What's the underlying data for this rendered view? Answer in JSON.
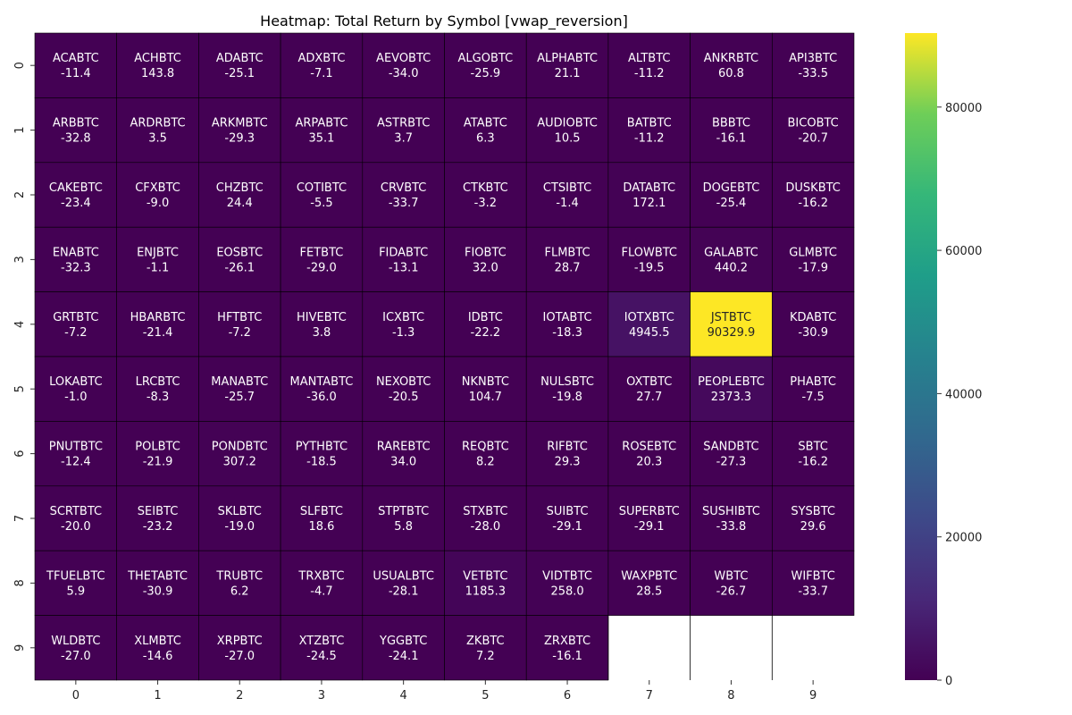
{
  "chart_data": {
    "type": "heatmap",
    "title": "Heatmap: Total Return by Symbol [vwap_reversion]",
    "xlabel": "",
    "ylabel": "",
    "x_ticks": [
      "0",
      "1",
      "2",
      "3",
      "4",
      "5",
      "6",
      "7",
      "8",
      "9"
    ],
    "y_ticks": [
      "0",
      "1",
      "2",
      "3",
      "4",
      "5",
      "6",
      "7",
      "8",
      "9"
    ],
    "colormap": "viridis",
    "colorbar": {
      "min": 0,
      "max": 90329.9,
      "ticks": [
        0,
        20000,
        40000,
        60000,
        80000
      ]
    },
    "cells": [
      [
        {
          "symbol": "ACABTC",
          "value": -11.4,
          "label": "-11.4"
        },
        {
          "symbol": "ACHBTC",
          "value": 143.8,
          "label": "143.8"
        },
        {
          "symbol": "ADABTC",
          "value": -25.1,
          "label": "-25.1"
        },
        {
          "symbol": "ADXBTC",
          "value": -7.1,
          "label": "-7.1"
        },
        {
          "symbol": "AEVOBTC",
          "value": -34.0,
          "label": "-34.0"
        },
        {
          "symbol": "ALGOBTC",
          "value": -25.9,
          "label": "-25.9"
        },
        {
          "symbol": "ALPHABTC",
          "value": 21.1,
          "label": "21.1"
        },
        {
          "symbol": "ALTBTC",
          "value": -11.2,
          "label": "-11.2"
        },
        {
          "symbol": "ANKRBTC",
          "value": 60.8,
          "label": "60.8"
        },
        {
          "symbol": "API3BTC",
          "value": -33.5,
          "label": "-33.5"
        }
      ],
      [
        {
          "symbol": "ARBBTC",
          "value": -32.8,
          "label": "-32.8"
        },
        {
          "symbol": "ARDRBTC",
          "value": 3.5,
          "label": "3.5"
        },
        {
          "symbol": "ARKMBTC",
          "value": -29.3,
          "label": "-29.3"
        },
        {
          "symbol": "ARPABTC",
          "value": 35.1,
          "label": "35.1"
        },
        {
          "symbol": "ASTRBTC",
          "value": 3.7,
          "label": "3.7"
        },
        {
          "symbol": "ATABTC",
          "value": 6.3,
          "label": "6.3"
        },
        {
          "symbol": "AUDIOBTC",
          "value": 10.5,
          "label": "10.5"
        },
        {
          "symbol": "BATBTC",
          "value": -11.2,
          "label": "-11.2"
        },
        {
          "symbol": "BBBTC",
          "value": -16.1,
          "label": "-16.1"
        },
        {
          "symbol": "BICOBTC",
          "value": -20.7,
          "label": "-20.7"
        }
      ],
      [
        {
          "symbol": "CAKEBTC",
          "value": -23.4,
          "label": "-23.4"
        },
        {
          "symbol": "CFXBTC",
          "value": -9.0,
          "label": "-9.0"
        },
        {
          "symbol": "CHZBTC",
          "value": 24.4,
          "label": "24.4"
        },
        {
          "symbol": "COTIBTC",
          "value": -5.5,
          "label": "-5.5"
        },
        {
          "symbol": "CRVBTC",
          "value": -33.7,
          "label": "-33.7"
        },
        {
          "symbol": "CTKBTC",
          "value": -3.2,
          "label": "-3.2"
        },
        {
          "symbol": "CTSIBTC",
          "value": -1.4,
          "label": "-1.4"
        },
        {
          "symbol": "DATABTC",
          "value": 172.1,
          "label": "172.1"
        },
        {
          "symbol": "DOGEBTC",
          "value": -25.4,
          "label": "-25.4"
        },
        {
          "symbol": "DUSKBTC",
          "value": -16.2,
          "label": "-16.2"
        }
      ],
      [
        {
          "symbol": "ENABTC",
          "value": -32.3,
          "label": "-32.3"
        },
        {
          "symbol": "ENJBTC",
          "value": -1.1,
          "label": "-1.1"
        },
        {
          "symbol": "EOSBTC",
          "value": -26.1,
          "label": "-26.1"
        },
        {
          "symbol": "FETBTC",
          "value": -29.0,
          "label": "-29.0"
        },
        {
          "symbol": "FIDABTC",
          "value": -13.1,
          "label": "-13.1"
        },
        {
          "symbol": "FIOBTC",
          "value": 32.0,
          "label": "32.0"
        },
        {
          "symbol": "FLMBTC",
          "value": 28.7,
          "label": "28.7"
        },
        {
          "symbol": "FLOWBTC",
          "value": -19.5,
          "label": "-19.5"
        },
        {
          "symbol": "GALABTC",
          "value": 440.2,
          "label": "440.2"
        },
        {
          "symbol": "GLMBTC",
          "value": -17.9,
          "label": "-17.9"
        }
      ],
      [
        {
          "symbol": "GRTBTC",
          "value": -7.2,
          "label": "-7.2"
        },
        {
          "symbol": "HBARBTC",
          "value": -21.4,
          "label": "-21.4"
        },
        {
          "symbol": "HFTBTC",
          "value": -7.2,
          "label": "-7.2"
        },
        {
          "symbol": "HIVEBTC",
          "value": 3.8,
          "label": "3.8"
        },
        {
          "symbol": "ICXBTC",
          "value": -1.3,
          "label": "-1.3"
        },
        {
          "symbol": "IDBTC",
          "value": -22.2,
          "label": "-22.2"
        },
        {
          "symbol": "IOTABTC",
          "value": -18.3,
          "label": "-18.3"
        },
        {
          "symbol": "IOTXBTC",
          "value": 4945.5,
          "label": "4945.5"
        },
        {
          "symbol": "JSTBTC",
          "value": 90329.9,
          "label": "90329.9"
        },
        {
          "symbol": "KDABTC",
          "value": -30.9,
          "label": "-30.9"
        }
      ],
      [
        {
          "symbol": "LOKABTC",
          "value": -1.0,
          "label": "-1.0"
        },
        {
          "symbol": "LRCBTC",
          "value": -8.3,
          "label": "-8.3"
        },
        {
          "symbol": "MANABTC",
          "value": -25.7,
          "label": "-25.7"
        },
        {
          "symbol": "MANTABTC",
          "value": -36.0,
          "label": "-36.0"
        },
        {
          "symbol": "NEXOBTC",
          "value": -20.5,
          "label": "-20.5"
        },
        {
          "symbol": "NKNBTC",
          "value": 104.7,
          "label": "104.7"
        },
        {
          "symbol": "NULSBTC",
          "value": -19.8,
          "label": "-19.8"
        },
        {
          "symbol": "OXTBTC",
          "value": 27.7,
          "label": "27.7"
        },
        {
          "symbol": "PEOPLEBTC",
          "value": 2373.3,
          "label": "2373.3"
        },
        {
          "symbol": "PHABTC",
          "value": -7.5,
          "label": "-7.5"
        }
      ],
      [
        {
          "symbol": "PNUTBTC",
          "value": -12.4,
          "label": "-12.4"
        },
        {
          "symbol": "POLBTC",
          "value": -21.9,
          "label": "-21.9"
        },
        {
          "symbol": "PONDBTC",
          "value": 307.2,
          "label": "307.2"
        },
        {
          "symbol": "PYTHBTC",
          "value": -18.5,
          "label": "-18.5"
        },
        {
          "symbol": "RAREBTC",
          "value": 34.0,
          "label": "34.0"
        },
        {
          "symbol": "REQBTC",
          "value": 8.2,
          "label": "8.2"
        },
        {
          "symbol": "RIFBTC",
          "value": 29.3,
          "label": "29.3"
        },
        {
          "symbol": "ROSEBTC",
          "value": 20.3,
          "label": "20.3"
        },
        {
          "symbol": "SANDBTC",
          "value": -27.3,
          "label": "-27.3"
        },
        {
          "symbol": "SBTC",
          "value": -16.2,
          "label": "-16.2"
        }
      ],
      [
        {
          "symbol": "SCRTBTC",
          "value": -20.0,
          "label": "-20.0"
        },
        {
          "symbol": "SEIBTC",
          "value": -23.2,
          "label": "-23.2"
        },
        {
          "symbol": "SKLBTC",
          "value": -19.0,
          "label": "-19.0"
        },
        {
          "symbol": "SLFBTC",
          "value": 18.6,
          "label": "18.6"
        },
        {
          "symbol": "STPTBTC",
          "value": 5.8,
          "label": "5.8"
        },
        {
          "symbol": "STXBTC",
          "value": -28.0,
          "label": "-28.0"
        },
        {
          "symbol": "SUIBTC",
          "value": -29.1,
          "label": "-29.1"
        },
        {
          "symbol": "SUPERBTC",
          "value": -29.1,
          "label": "-29.1"
        },
        {
          "symbol": "SUSHIBTC",
          "value": -33.8,
          "label": "-33.8"
        },
        {
          "symbol": "SYSBTC",
          "value": 29.6,
          "label": "29.6"
        }
      ],
      [
        {
          "symbol": "TFUELBTC",
          "value": 5.9,
          "label": "5.9"
        },
        {
          "symbol": "THETABTC",
          "value": -30.9,
          "label": "-30.9"
        },
        {
          "symbol": "TRUBTC",
          "value": 6.2,
          "label": "6.2"
        },
        {
          "symbol": "TRXBTC",
          "value": -4.7,
          "label": "-4.7"
        },
        {
          "symbol": "USUALBTC",
          "value": -28.1,
          "label": "-28.1"
        },
        {
          "symbol": "VETBTC",
          "value": 1185.3,
          "label": "1185.3"
        },
        {
          "symbol": "VIDTBTC",
          "value": 258.0,
          "label": "258.0"
        },
        {
          "symbol": "WAXPBTC",
          "value": 28.5,
          "label": "28.5"
        },
        {
          "symbol": "WBTC",
          "value": -26.7,
          "label": "-26.7"
        },
        {
          "symbol": "WIFBTC",
          "value": -33.7,
          "label": "-33.7"
        }
      ],
      [
        {
          "symbol": "WLDBTC",
          "value": -27.0,
          "label": "-27.0"
        },
        {
          "symbol": "XLMBTC",
          "value": -14.6,
          "label": "-14.6"
        },
        {
          "symbol": "XRPBTC",
          "value": -27.0,
          "label": "-27.0"
        },
        {
          "symbol": "XTZBTC",
          "value": -24.5,
          "label": "-24.5"
        },
        {
          "symbol": "YGGBTC",
          "value": -24.1,
          "label": "-24.1"
        },
        {
          "symbol": "ZKBTC",
          "value": 7.2,
          "label": "7.2"
        },
        {
          "symbol": "ZRXBTC",
          "value": -16.1,
          "label": "-16.1"
        },
        null,
        null,
        null
      ]
    ]
  }
}
